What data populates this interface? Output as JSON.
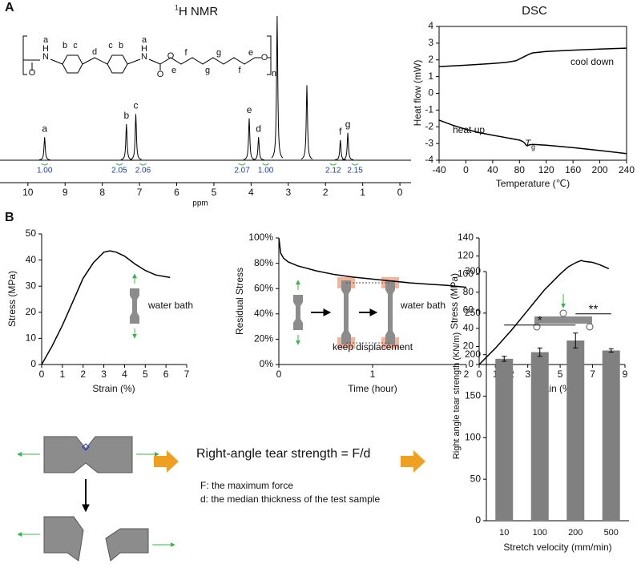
{
  "panels": [
    "A",
    "B"
  ],
  "chart_data": [
    {
      "type": "spectrum",
      "title_superscript": "1",
      "title": "H NMR",
      "xlabel": "ppm",
      "xlim": [
        10.75,
        -0.3
      ],
      "xticks": [
        10,
        9,
        8,
        7,
        6,
        5,
        4,
        3,
        2,
        1,
        0
      ],
      "ylim": [
        0,
        100
      ],
      "x": [
        9.55,
        7.35,
        7.1,
        4.05,
        3.8,
        3.3,
        2.5,
        1.6,
        1.4
      ],
      "values": [
        16,
        25,
        32,
        29,
        16,
        100,
        52,
        14,
        19
      ],
      "labels": [
        "a",
        "b",
        "c",
        "e",
        "d",
        null,
        null,
        "f",
        "g"
      ],
      "color": "#000000",
      "integrals": {
        "values": [
          1,
          2.05,
          2.06,
          2.07,
          1,
          2.12,
          2.15
        ],
        "value_labels": [
          "1.00",
          "2.05",
          "2.06",
          "2.07",
          "1.00",
          "2.12",
          "2.15"
        ],
        "color": "#1f3f9a"
      },
      "structure": {
        "labels": [
          "a",
          "H",
          "N",
          "b",
          "c",
          "d",
          "c",
          "b",
          "a",
          "H",
          "N",
          "O",
          "O",
          "O",
          "e",
          "f",
          "g",
          "g",
          "f",
          "e",
          "O",
          "n"
        ]
      }
    },
    {
      "type": "line",
      "title": "DSC",
      "xlabel": "Temperature (℃)",
      "ylabel": "Heat flow (mW)",
      "xlim": [
        -40,
        240
      ],
      "xticks": [
        -40,
        0,
        40,
        80,
        120,
        160,
        200,
        240
      ],
      "ylim": [
        -4,
        4
      ],
      "yticks": [
        -4,
        -3,
        -2,
        -1,
        0,
        1,
        2,
        3,
        4
      ],
      "frame": true,
      "series": [
        {
          "name": "cool down",
          "color": "#000000",
          "x": [
            -40,
            0,
            40,
            60,
            75,
            85,
            95,
            100,
            120,
            160,
            200,
            240
          ],
          "values": [
            1.6,
            1.68,
            1.78,
            1.85,
            1.95,
            2.15,
            2.35,
            2.42,
            2.5,
            2.58,
            2.65,
            2.7
          ]
        },
        {
          "name": "heat up",
          "color": "#000000",
          "x": [
            -40,
            -20,
            0,
            20,
            40,
            60,
            80,
            85,
            88,
            90,
            92,
            95,
            100,
            120,
            160,
            200,
            240
          ],
          "values": [
            -1.6,
            -1.9,
            -2.15,
            -2.35,
            -2.5,
            -2.65,
            -2.8,
            -2.88,
            -2.98,
            -3.1,
            -3.12,
            -3.08,
            -3.05,
            -3.1,
            -3.25,
            -3.42,
            -3.6
          ]
        }
      ],
      "annotations": [
        "T",
        "g"
      ]
    },
    {
      "type": "line",
      "xlabel": "Strain (%)",
      "ylabel": "Stress (MPa)",
      "xlim": [
        0,
        7
      ],
      "xticks": [
        0,
        1,
        2,
        3,
        4,
        5,
        6,
        7
      ],
      "ylim": [
        0,
        50
      ],
      "yticks": [
        0,
        10,
        20,
        30,
        40,
        50
      ],
      "series": [
        {
          "color": "#000000",
          "x": [
            0,
            0.5,
            1,
            1.5,
            2,
            2.5,
            3,
            3.3,
            3.6,
            4,
            4.5,
            5,
            5.5,
            6.2
          ],
          "values": [
            0,
            7,
            15,
            24,
            33,
            39,
            43,
            43.5,
            43,
            41.5,
            38.5,
            36,
            34.3,
            33.3
          ]
        }
      ],
      "annotations": [
        "water bath"
      ]
    },
    {
      "type": "line",
      "xlabel": "Time (hour)",
      "ylabel": "Residual Stress",
      "xlim": [
        0,
        2
      ],
      "xticks": [
        0,
        1,
        2
      ],
      "ylim": [
        0,
        100
      ],
      "yticks": [
        {
          "value": 0,
          "label": "0%"
        },
        {
          "value": 20,
          "label": "20%"
        },
        {
          "value": 40,
          "label": "40%"
        },
        {
          "value": 60,
          "label": "60%"
        },
        {
          "value": 80,
          "label": "80%"
        },
        {
          "value": 100,
          "label": "100%"
        }
      ],
      "series": [
        {
          "color": "#000000",
          "x": [
            0,
            0.02,
            0.05,
            0.1,
            0.2,
            0.4,
            0.6,
            0.8,
            1,
            1.2,
            1.4,
            1.6,
            1.8,
            2
          ],
          "values": [
            100,
            88,
            84,
            81,
            78,
            74,
            71,
            69,
            67.5,
            66,
            64.5,
            63.5,
            62.5,
            61
          ]
        }
      ],
      "annotations": [
        "water bath",
        "keep displacement"
      ]
    },
    {
      "type": "line",
      "xlabel": "Strain (%)",
      "ylabel": "Stress (MPa)",
      "xlim": [
        0,
        9
      ],
      "xticks": [
        0,
        1,
        2,
        3,
        4,
        5,
        6,
        7,
        8,
        9
      ],
      "ylim": [
        0,
        140
      ],
      "yticks": [
        0,
        20,
        40,
        60,
        80,
        100,
        120,
        140
      ],
      "series": [
        {
          "color": "#000000",
          "x": [
            0,
            1,
            2,
            3,
            4,
            5,
            5.5,
            6,
            6.3,
            6.5,
            7,
            7.5,
            8
          ],
          "values": [
            0,
            18,
            38,
            60,
            82,
            100,
            108,
            113,
            115,
            114,
            113,
            110,
            106
          ]
        }
      ],
      "annotations": []
    },
    {
      "type": "bar",
      "xlabel": "Stretch velocity (mm/min)",
      "ylabel": "Right angle tear strength (KN/m)",
      "categories": [
        "10",
        "100",
        "200",
        "500"
      ],
      "values": [
        195,
        203,
        217,
        205
      ],
      "errors": [
        3,
        5,
        9,
        2
      ],
      "color": "#808080",
      "ylim": [
        0,
        300
      ],
      "yticks": [
        0,
        50,
        100,
        150,
        200,
        250,
        300
      ],
      "significance": [
        {
          "from": 0,
          "to": 2,
          "label": "*"
        },
        {
          "from": 2,
          "to": 3,
          "label": "**"
        }
      ]
    }
  ],
  "tear": {
    "formula": "Right-angle tear strength = F/d",
    "notes": [
      "F: the maximum force",
      "d: the median thickness of the test sample"
    ]
  }
}
